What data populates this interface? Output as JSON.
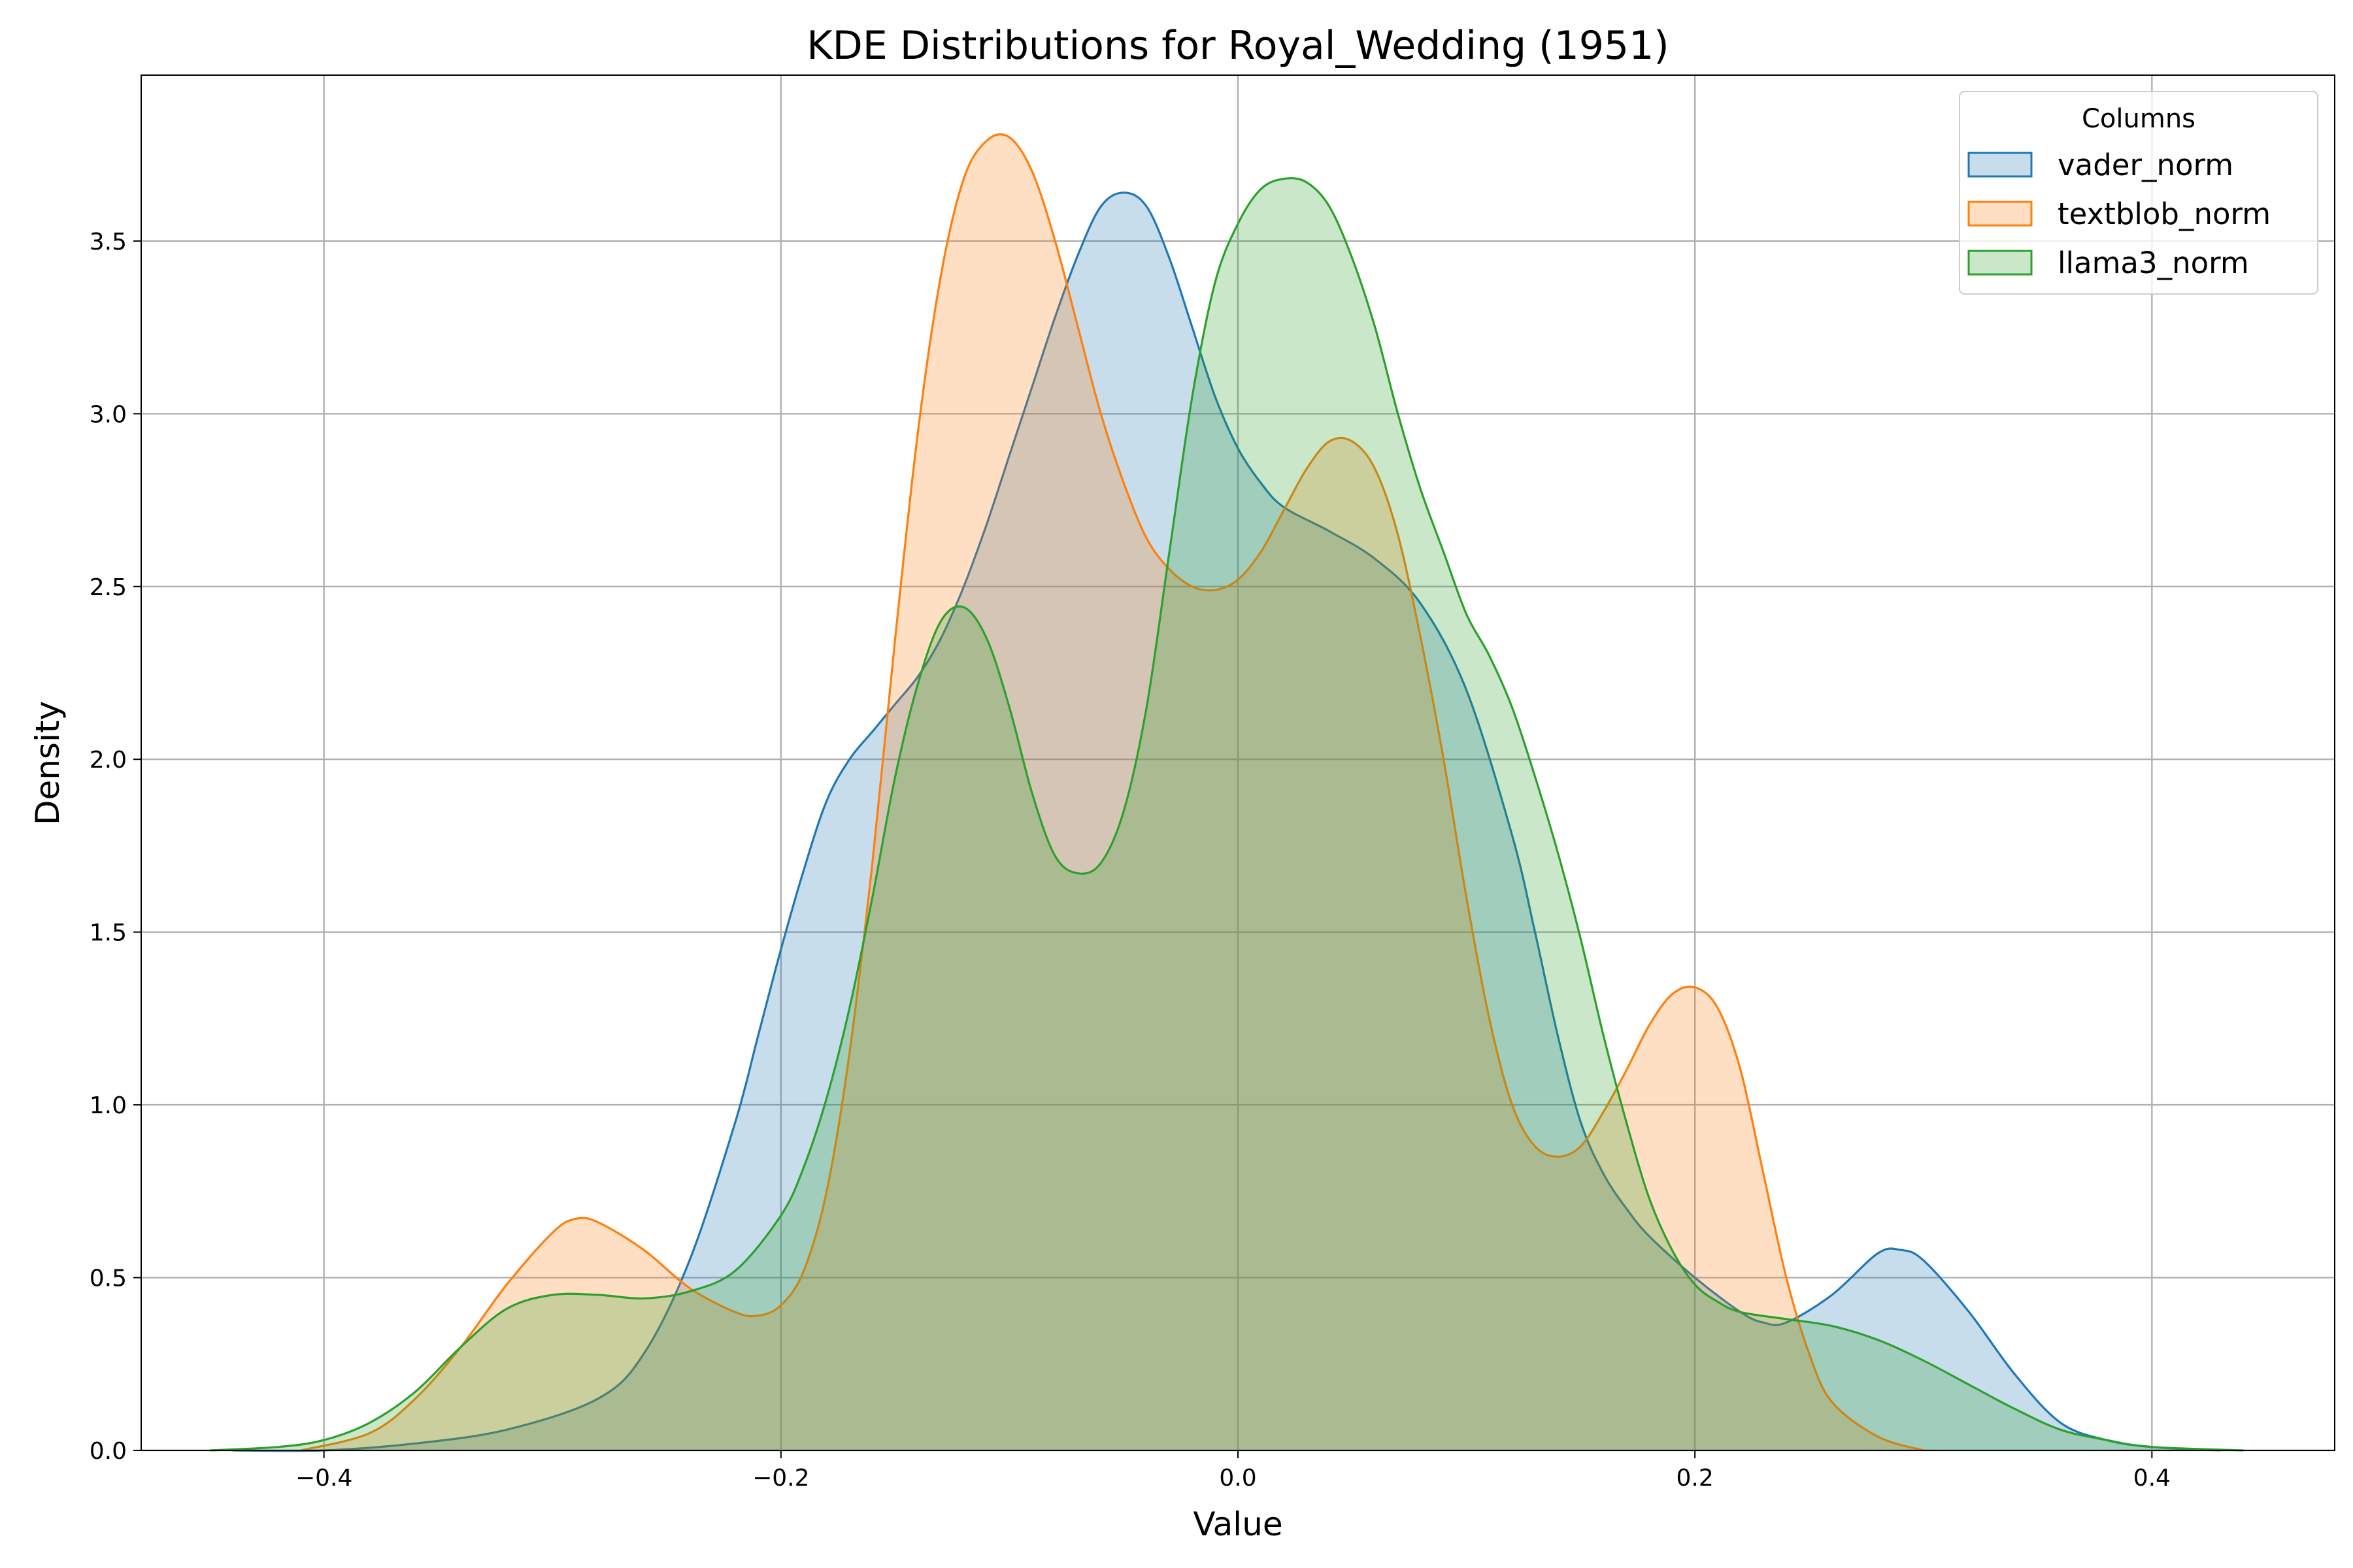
{
  "chart_data": {
    "type": "area",
    "title": "KDE Distributions for Royal_Wedding (1951)",
    "xlabel": "Value",
    "ylabel": "Density",
    "xlim": [
      -0.48,
      0.48
    ],
    "ylim": [
      0,
      3.98
    ],
    "x_ticks": [
      -0.4,
      -0.2,
      0.0,
      0.2,
      0.4
    ],
    "x_tick_labels": [
      "−0.4",
      "−0.2",
      "0.0",
      "0.2",
      "0.4"
    ],
    "y_ticks": [
      0.0,
      0.5,
      1.0,
      1.5,
      2.0,
      2.5,
      3.0,
      3.5
    ],
    "y_tick_labels": [
      "0.0",
      "0.5",
      "1.0",
      "1.5",
      "2.0",
      "2.5",
      "3.0",
      "3.5"
    ],
    "grid": true,
    "legend": {
      "title": "Columns",
      "position": "top-right"
    },
    "series": [
      {
        "name": "vader_norm",
        "color": "#1f77b4",
        "points": [
          [
            -0.44,
            0.0
          ],
          [
            -0.4,
            0.0
          ],
          [
            -0.36,
            0.02
          ],
          [
            -0.32,
            0.06
          ],
          [
            -0.28,
            0.15
          ],
          [
            -0.26,
            0.28
          ],
          [
            -0.24,
            0.55
          ],
          [
            -0.22,
            0.95
          ],
          [
            -0.21,
            1.2
          ],
          [
            -0.2,
            1.45
          ],
          [
            -0.19,
            1.68
          ],
          [
            -0.18,
            1.88
          ],
          [
            -0.17,
            2.0
          ],
          [
            -0.16,
            2.08
          ],
          [
            -0.15,
            2.16
          ],
          [
            -0.14,
            2.24
          ],
          [
            -0.13,
            2.35
          ],
          [
            -0.12,
            2.5
          ],
          [
            -0.11,
            2.68
          ],
          [
            -0.1,
            2.88
          ],
          [
            -0.09,
            3.08
          ],
          [
            -0.08,
            3.28
          ],
          [
            -0.07,
            3.46
          ],
          [
            -0.06,
            3.6
          ],
          [
            -0.05,
            3.64
          ],
          [
            -0.04,
            3.6
          ],
          [
            -0.03,
            3.45
          ],
          [
            -0.02,
            3.25
          ],
          [
            -0.01,
            3.05
          ],
          [
            0.0,
            2.9
          ],
          [
            0.01,
            2.8
          ],
          [
            0.02,
            2.73
          ],
          [
            0.04,
            2.66
          ],
          [
            0.06,
            2.58
          ],
          [
            0.08,
            2.45
          ],
          [
            0.1,
            2.2
          ],
          [
            0.12,
            1.78
          ],
          [
            0.13,
            1.5
          ],
          [
            0.14,
            1.2
          ],
          [
            0.15,
            0.95
          ],
          [
            0.16,
            0.8
          ],
          [
            0.17,
            0.7
          ],
          [
            0.18,
            0.62
          ],
          [
            0.2,
            0.5
          ],
          [
            0.22,
            0.4
          ],
          [
            0.23,
            0.37
          ],
          [
            0.24,
            0.37
          ],
          [
            0.26,
            0.45
          ],
          [
            0.28,
            0.57
          ],
          [
            0.29,
            0.58
          ],
          [
            0.3,
            0.55
          ],
          [
            0.32,
            0.4
          ],
          [
            0.34,
            0.22
          ],
          [
            0.36,
            0.08
          ],
          [
            0.38,
            0.03
          ],
          [
            0.4,
            0.01
          ],
          [
            0.43,
            0.0
          ]
        ]
      },
      {
        "name": "textblob_norm",
        "color": "#ff7f0e",
        "points": [
          [
            -0.41,
            0.0
          ],
          [
            -0.38,
            0.05
          ],
          [
            -0.36,
            0.15
          ],
          [
            -0.34,
            0.3
          ],
          [
            -0.32,
            0.48
          ],
          [
            -0.3,
            0.63
          ],
          [
            -0.29,
            0.67
          ],
          [
            -0.28,
            0.66
          ],
          [
            -0.26,
            0.58
          ],
          [
            -0.24,
            0.47
          ],
          [
            -0.22,
            0.4
          ],
          [
            -0.21,
            0.39
          ],
          [
            -0.2,
            0.42
          ],
          [
            -0.19,
            0.52
          ],
          [
            -0.18,
            0.75
          ],
          [
            -0.17,
            1.15
          ],
          [
            -0.16,
            1.7
          ],
          [
            -0.15,
            2.35
          ],
          [
            -0.14,
            2.95
          ],
          [
            -0.13,
            3.4
          ],
          [
            -0.12,
            3.68
          ],
          [
            -0.11,
            3.79
          ],
          [
            -0.1,
            3.8
          ],
          [
            -0.09,
            3.7
          ],
          [
            -0.08,
            3.5
          ],
          [
            -0.07,
            3.25
          ],
          [
            -0.06,
            3.0
          ],
          [
            -0.05,
            2.8
          ],
          [
            -0.04,
            2.64
          ],
          [
            -0.03,
            2.55
          ],
          [
            -0.02,
            2.5
          ],
          [
            -0.01,
            2.49
          ],
          [
            0.0,
            2.52
          ],
          [
            0.01,
            2.6
          ],
          [
            0.02,
            2.72
          ],
          [
            0.03,
            2.84
          ],
          [
            0.04,
            2.92
          ],
          [
            0.05,
            2.92
          ],
          [
            0.06,
            2.84
          ],
          [
            0.07,
            2.65
          ],
          [
            0.08,
            2.35
          ],
          [
            0.09,
            2.0
          ],
          [
            0.1,
            1.6
          ],
          [
            0.11,
            1.25
          ],
          [
            0.12,
            1.0
          ],
          [
            0.13,
            0.88
          ],
          [
            0.14,
            0.85
          ],
          [
            0.15,
            0.88
          ],
          [
            0.16,
            0.98
          ],
          [
            0.17,
            1.1
          ],
          [
            0.18,
            1.23
          ],
          [
            0.19,
            1.32
          ],
          [
            0.2,
            1.34
          ],
          [
            0.21,
            1.28
          ],
          [
            0.22,
            1.1
          ],
          [
            0.23,
            0.8
          ],
          [
            0.24,
            0.5
          ],
          [
            0.25,
            0.28
          ],
          [
            0.26,
            0.14
          ],
          [
            0.28,
            0.04
          ],
          [
            0.3,
            0.0
          ]
        ]
      },
      {
        "name": "llama3_norm",
        "color": "#2ca02c",
        "points": [
          [
            -0.45,
            0.0
          ],
          [
            -0.42,
            0.01
          ],
          [
            -0.4,
            0.03
          ],
          [
            -0.38,
            0.08
          ],
          [
            -0.36,
            0.17
          ],
          [
            -0.34,
            0.3
          ],
          [
            -0.32,
            0.41
          ],
          [
            -0.3,
            0.45
          ],
          [
            -0.28,
            0.45
          ],
          [
            -0.26,
            0.44
          ],
          [
            -0.24,
            0.46
          ],
          [
            -0.22,
            0.52
          ],
          [
            -0.2,
            0.68
          ],
          [
            -0.19,
            0.82
          ],
          [
            -0.18,
            1.02
          ],
          [
            -0.17,
            1.28
          ],
          [
            -0.16,
            1.6
          ],
          [
            -0.15,
            1.95
          ],
          [
            -0.14,
            2.22
          ],
          [
            -0.13,
            2.4
          ],
          [
            -0.12,
            2.44
          ],
          [
            -0.11,
            2.35
          ],
          [
            -0.1,
            2.15
          ],
          [
            -0.09,
            1.9
          ],
          [
            -0.08,
            1.72
          ],
          [
            -0.07,
            1.67
          ],
          [
            -0.06,
            1.7
          ],
          [
            -0.05,
            1.85
          ],
          [
            -0.04,
            2.15
          ],
          [
            -0.03,
            2.6
          ],
          [
            -0.02,
            3.05
          ],
          [
            -0.01,
            3.38
          ],
          [
            0.0,
            3.55
          ],
          [
            0.01,
            3.65
          ],
          [
            0.02,
            3.68
          ],
          [
            0.03,
            3.67
          ],
          [
            0.04,
            3.6
          ],
          [
            0.05,
            3.45
          ],
          [
            0.06,
            3.25
          ],
          [
            0.07,
            3.0
          ],
          [
            0.08,
            2.78
          ],
          [
            0.09,
            2.6
          ],
          [
            0.1,
            2.42
          ],
          [
            0.11,
            2.3
          ],
          [
            0.12,
            2.15
          ],
          [
            0.13,
            1.95
          ],
          [
            0.14,
            1.73
          ],
          [
            0.15,
            1.48
          ],
          [
            0.16,
            1.2
          ],
          [
            0.17,
            0.95
          ],
          [
            0.18,
            0.73
          ],
          [
            0.19,
            0.58
          ],
          [
            0.2,
            0.48
          ],
          [
            0.21,
            0.43
          ],
          [
            0.22,
            0.4
          ],
          [
            0.24,
            0.38
          ],
          [
            0.26,
            0.36
          ],
          [
            0.28,
            0.32
          ],
          [
            0.3,
            0.26
          ],
          [
            0.32,
            0.19
          ],
          [
            0.34,
            0.12
          ],
          [
            0.36,
            0.06
          ],
          [
            0.38,
            0.03
          ],
          [
            0.4,
            0.01
          ],
          [
            0.44,
            0.0
          ]
        ]
      }
    ]
  }
}
